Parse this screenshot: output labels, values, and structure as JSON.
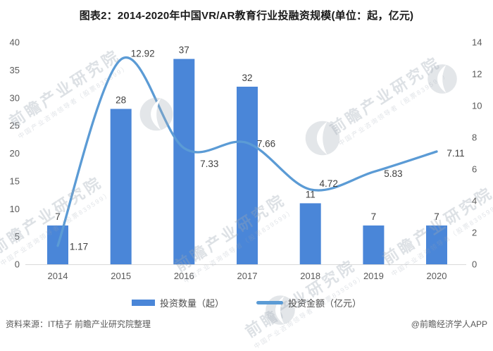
{
  "title": "图表2：2014-2020年中国VR/AR教育行业投融资规模(单位：起，亿元)",
  "chart_data": {
    "type": "bar+line",
    "title": "图表2：2014-2020年中国VR/AR教育行业投融资规模(单位：起，亿元)",
    "categories": [
      "2014",
      "2015",
      "2016",
      "2017",
      "2018",
      "2019",
      "2020"
    ],
    "series": [
      {
        "name": "投资数量（起）",
        "type": "bar",
        "axis": "left",
        "color": "#4a86d8",
        "values": [
          7,
          28,
          37,
          32,
          11,
          7,
          7
        ]
      },
      {
        "name": "投资金额（亿元）",
        "type": "line",
        "axis": "right",
        "color": "#5b9bd5",
        "values": [
          1.17,
          12.92,
          7.33,
          7.66,
          4.72,
          5.83,
          7.11
        ]
      }
    ],
    "left_axis": {
      "range": [
        0,
        40
      ],
      "ticks": [
        0,
        5,
        10,
        15,
        20,
        25,
        30,
        35,
        40
      ]
    },
    "right_axis": {
      "range": [
        0,
        14
      ],
      "ticks": [
        0,
        2,
        4,
        6,
        8,
        10,
        12,
        14
      ]
    },
    "grid": false,
    "legend_position": "bottom"
  },
  "colors": {
    "bar": "#4a86d8",
    "line": "#5b9bd5",
    "axis_line": "#d9d9d9",
    "tick_text": "#595959",
    "data_label": "#3f3f3f"
  },
  "footer": {
    "source": "资料来源：IT桔子 前瞻产业研究院整理",
    "credit": "@前瞻经济学人APP"
  },
  "watermark": {
    "text": "前瞻产业研究院",
    "subtext": "中国产业咨询领导者（股票839599）"
  }
}
